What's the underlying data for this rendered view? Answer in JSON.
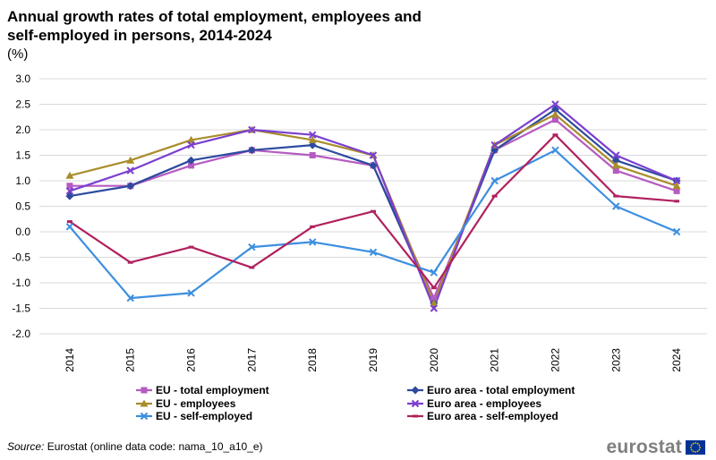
{
  "title": "Annual growth rates of total employment, employees and\nself-employed in persons, 2014-2024",
  "unit": "(%)",
  "source": {
    "label": "Source:",
    "text": " Eurostat (online data code: nama_10_a10_e)"
  },
  "logo": {
    "text": "eurostat",
    "flag_icon": "eu-flag-icon"
  },
  "chart_data": {
    "type": "line",
    "title": "Annual growth rates of total employment, employees and self-employed in persons, 2014-2024",
    "xlabel": "",
    "ylabel": "(%)",
    "ylim": [
      -2.0,
      3.0
    ],
    "yticks": [
      3.0,
      2.5,
      2.0,
      1.5,
      1.0,
      0.5,
      0.0,
      -0.5,
      -1.0,
      -1.5,
      -2.0
    ],
    "ytick_labels": [
      "3.0",
      "2.5",
      "2.0",
      "1.5",
      "1.0",
      "0.5",
      "0.0",
      "-0.5",
      "-1.0",
      "-1.5",
      "-2.0"
    ],
    "grid": true,
    "legend_position": "bottom",
    "categories": [
      "2014",
      "2015",
      "2016",
      "2017",
      "2018",
      "2019",
      "2020",
      "2021",
      "2022",
      "2023",
      "2024"
    ],
    "series": [
      {
        "name": "EU - total employment",
        "color": "#b55bc1",
        "marker": "square",
        "values": [
          0.9,
          0.9,
          1.3,
          1.6,
          1.5,
          1.3,
          -1.3,
          1.6,
          2.2,
          1.2,
          0.8
        ]
      },
      {
        "name": "Euro area - total employment",
        "color": "#2c4a9e",
        "marker": "diamond",
        "values": [
          0.7,
          0.9,
          1.4,
          1.6,
          1.7,
          1.3,
          -1.4,
          1.6,
          2.4,
          1.4,
          1.0
        ]
      },
      {
        "name": "EU - employees",
        "color": "#a88d2b",
        "marker": "triangle",
        "values": [
          1.1,
          1.4,
          1.8,
          2.0,
          1.8,
          1.5,
          -1.4,
          1.7,
          2.3,
          1.3,
          0.9
        ]
      },
      {
        "name": "Euro area - employees",
        "color": "#7b3fd0",
        "marker": "x",
        "values": [
          0.8,
          1.2,
          1.7,
          2.0,
          1.9,
          1.5,
          -1.5,
          1.7,
          2.5,
          1.5,
          1.0
        ]
      },
      {
        "name": "EU - self-employed",
        "color": "#3d8fe0",
        "marker": "x",
        "values": [
          0.1,
          -1.3,
          -1.2,
          -0.3,
          -0.2,
          -0.4,
          -0.8,
          1.0,
          1.6,
          0.5,
          0.0
        ]
      },
      {
        "name": "Euro area - self-employed",
        "color": "#b0215e",
        "marker": "dash",
        "values": [
          0.2,
          -0.6,
          -0.3,
          -0.7,
          0.1,
          0.4,
          -1.1,
          0.7,
          1.9,
          0.7,
          0.6
        ]
      }
    ]
  }
}
